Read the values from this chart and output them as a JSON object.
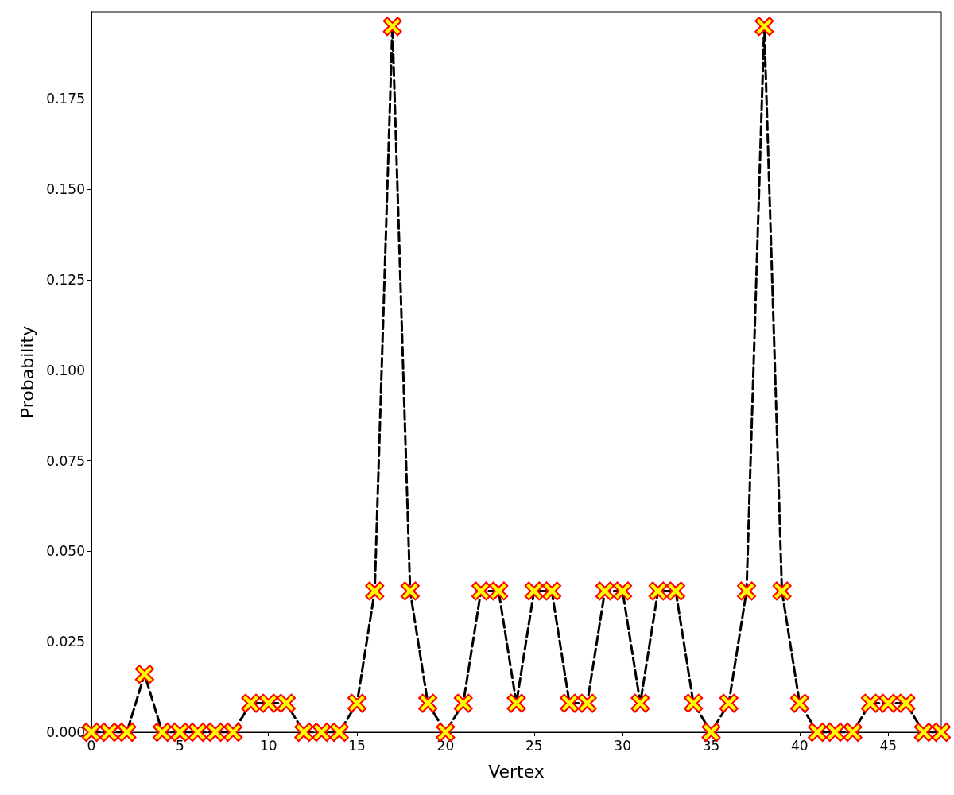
{
  "chart_data": {
    "type": "line",
    "xlabel": "Vertex",
    "ylabel": "Probability",
    "x": [
      0,
      1,
      2,
      3,
      4,
      5,
      6,
      7,
      8,
      9,
      10,
      11,
      12,
      13,
      14,
      15,
      16,
      17,
      18,
      19,
      20,
      21,
      22,
      23,
      24,
      25,
      26,
      27,
      28,
      29,
      30,
      31,
      32,
      33,
      34,
      35,
      36,
      37,
      38,
      39,
      40,
      41,
      42,
      43,
      44,
      45,
      46,
      47,
      48
    ],
    "series": [
      {
        "color": "#000000",
        "colors": [
          "#ffff00",
          "#ffff00",
          "#ffff00",
          "#ffff00",
          "#ffff00",
          "#ffff00",
          "#ffff00",
          "#ffff00",
          "#ffff00",
          "#ffff00",
          "#ffff00",
          "#ffff00",
          "#ffff00",
          "#ffff00",
          "#ffff00",
          "#ffff00",
          "#ffff00",
          "#ffff00",
          "#ffff00",
          "#ffff00",
          "#ffff00",
          "#ffff00",
          "#ffff00",
          "#ffff00",
          "#ffff00",
          "#ffff00",
          "#ffff00",
          "#ffff00",
          "#ffff00",
          "#ffff00",
          "#ffff00",
          "#ffff00",
          "#ffff00",
          "#ffff00",
          "#ffff00",
          "#ffff00",
          "#ffff00",
          "#ffff00",
          "#ffff00",
          "#ffff00",
          "#ffff00",
          "#ffff00",
          "#ffff00",
          "#ffff00",
          "#ffff00",
          "#ffff00",
          "#ffff00",
          "#ffff00",
          "#ffff00"
        ],
        "values": [
          0,
          0,
          0,
          0.016,
          0,
          0,
          0,
          0,
          0,
          0.008,
          0.008,
          0.008,
          0,
          0,
          0,
          0.008,
          0.039,
          0.195,
          0.039,
          0.008,
          0,
          0.008,
          0.039,
          0.039,
          0.008,
          0.039,
          0.039,
          0.008,
          0.008,
          0.039,
          0.039,
          0.008,
          0.039,
          0.039,
          0.008,
          0,
          0.008,
          0.039,
          0.195,
          0.039,
          0.008,
          0,
          0,
          0,
          0.008,
          0.008,
          0.008,
          0,
          0
        ]
      }
    ],
    "xlim": [
      0,
      48
    ],
    "xticks": [
      0,
      5,
      10,
      15,
      20,
      25,
      30,
      35,
      40,
      45
    ],
    "ylim": [
      0,
      0.199
    ],
    "yticks": [
      {
        "value": 0,
        "label": "0.000"
      },
      {
        "value": 0.025,
        "label": "0.025"
      },
      {
        "value": 0.05,
        "label": "0.050"
      },
      {
        "value": 0.075,
        "label": "0.075"
      },
      {
        "value": 0.1,
        "label": "0.100"
      },
      {
        "value": 0.125,
        "label": "0.125"
      },
      {
        "value": 0.15,
        "label": "0.150"
      },
      {
        "value": 0.175,
        "label": "0.175"
      }
    ],
    "grid": false,
    "marker": "cross",
    "line_style": "dashed"
  }
}
